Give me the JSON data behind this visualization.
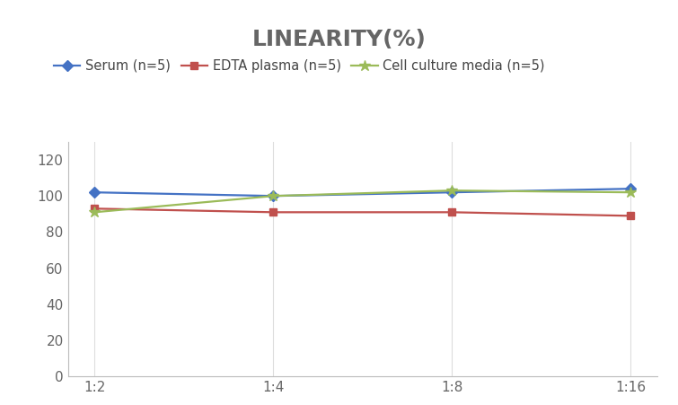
{
  "title": "LINEARITY(%)",
  "title_fontsize": 18,
  "title_fontweight": "bold",
  "title_color": "#666666",
  "x_labels": [
    "1:2",
    "1:4",
    "1:8",
    "1:16"
  ],
  "x_positions": [
    0,
    1,
    2,
    3
  ],
  "series": [
    {
      "label": "Serum (n=5)",
      "values": [
        102,
        100,
        102,
        104
      ],
      "color": "#4472C4",
      "marker": "D",
      "markersize": 6,
      "linewidth": 1.6
    },
    {
      "label": "EDTA plasma (n=5)",
      "values": [
        93,
        91,
        91,
        89
      ],
      "color": "#C0504D",
      "marker": "s",
      "markersize": 6,
      "linewidth": 1.6
    },
    {
      "label": "Cell culture media (n=5)",
      "values": [
        91,
        100,
        103,
        102
      ],
      "color": "#9BBB59",
      "marker": "*",
      "markersize": 9,
      "linewidth": 1.6
    }
  ],
  "ylim": [
    0,
    130
  ],
  "yticks": [
    0,
    20,
    40,
    60,
    80,
    100,
    120
  ],
  "background_color": "#FFFFFF",
  "grid_color": "#DDDDDD",
  "legend_fontsize": 10.5,
  "axis_tick_color": "#666666",
  "axis_tick_fontsize": 11
}
